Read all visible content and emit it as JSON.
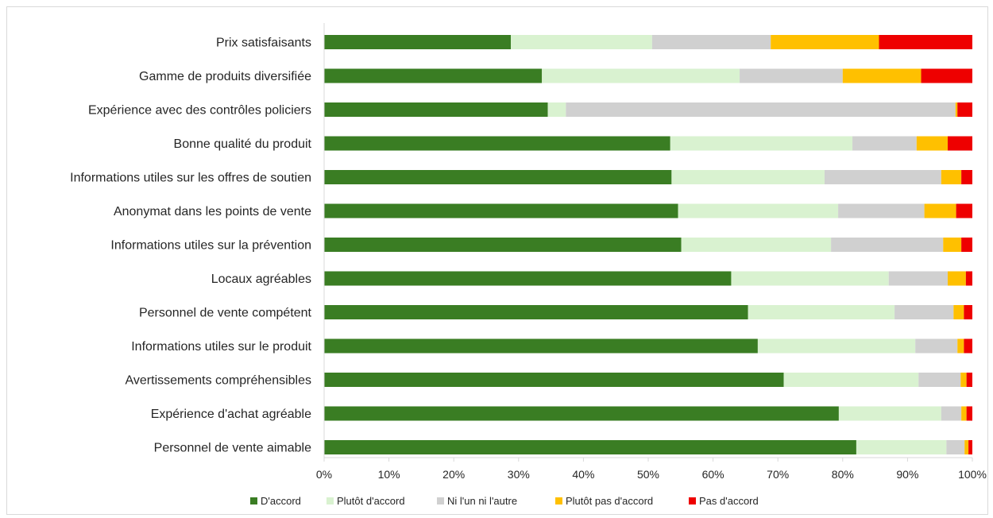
{
  "chart_data": {
    "type": "bar",
    "orientation": "horizontal",
    "stacked": true,
    "percent": true,
    "title": "",
    "xlabel": "",
    "ylabel": "",
    "xlim": [
      0,
      100
    ],
    "x_ticks": [
      "0%",
      "10%",
      "20%",
      "30%",
      "40%",
      "50%",
      "60%",
      "70%",
      "80%",
      "90%",
      "100%"
    ],
    "grid": false,
    "legend_position": "bottom",
    "categories": [
      "Prix satisfaisants",
      "Gamme de produits diversifiée",
      "Expérience avec des contrôles policiers",
      "Bonne qualité du produit",
      "Informations utiles sur les offres de soutien",
      "Anonymat dans les points de vente",
      "Informations utiles sur la prévention",
      "Locaux agréables",
      "Personnel de vente compétent",
      "Informations utiles sur le produit",
      "Avertissements compréhensibles",
      "Expérience d'achat agréable",
      "Personnel de vente aimable"
    ],
    "series": [
      {
        "name": "D'accord",
        "color": "#3a7d23",
        "values": [
          28.8,
          33.6,
          34.5,
          53.4,
          53.6,
          54.6,
          55.1,
          62.8,
          65.4,
          66.9,
          70.9,
          79.4,
          82.1
        ]
      },
      {
        "name": "Plutôt d'accord",
        "color": "#d9f2d0",
        "values": [
          21.8,
          30.5,
          2.8,
          28.1,
          23.6,
          24.7,
          23.1,
          24.3,
          22.6,
          24.3,
          20.8,
          15.8,
          13.9
        ]
      },
      {
        "name": "Ni l'un ni l'autre",
        "color": "#d0d0d0",
        "values": [
          18.3,
          15.9,
          60.1,
          9.9,
          18.0,
          13.3,
          17.3,
          9.1,
          9.1,
          6.5,
          6.5,
          3.1,
          2.8
        ]
      },
      {
        "name": "Plutôt pas d'accord",
        "color": "#ffc000",
        "values": [
          16.7,
          12.1,
          0.3,
          4.8,
          3.1,
          4.9,
          2.8,
          2.8,
          1.6,
          1.0,
          0.9,
          0.8,
          0.6
        ]
      },
      {
        "name": "Pas d'accord",
        "color": "#ee0000",
        "values": [
          14.4,
          7.9,
          2.3,
          3.8,
          1.7,
          2.5,
          1.7,
          1.0,
          1.3,
          1.3,
          0.9,
          0.9,
          0.6
        ]
      }
    ]
  }
}
